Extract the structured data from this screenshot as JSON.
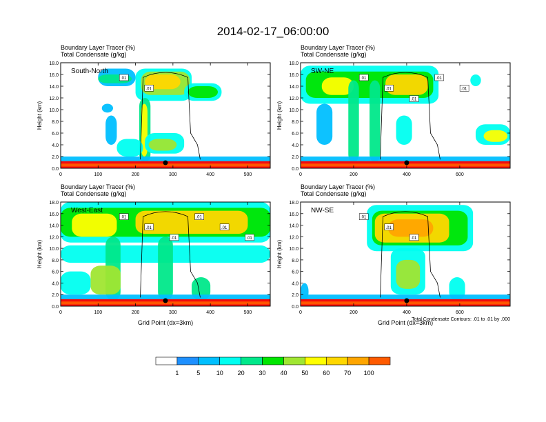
{
  "title": "2014-02-17_06:00:00",
  "colors": {
    "levels": [
      "#ffffff",
      "#1e90ff",
      "#00bfff",
      "#00fff0",
      "#00e88a",
      "#00e600",
      "#a0e632",
      "#ffff00",
      "#ffd700",
      "#ffa500",
      "#ff5a00",
      "#ff0000"
    ],
    "contour": "#000000",
    "marker": "#000000"
  },
  "colorbar": {
    "labels": [
      "1",
      "5",
      "10",
      "20",
      "30",
      "40",
      "50",
      "60",
      "70",
      "100"
    ]
  },
  "footnote": "Total Condensate Contours: .01 to .01 by .000",
  "chart_data": [
    {
      "type": "heatmap",
      "panel_label": "South-North",
      "title_line1": "Boundary Layer Tracer    (%)",
      "title_line2": "Total Condensate   (g/kg)",
      "xlabel": "",
      "ylabel": "Height (km)",
      "xlim": [
        0,
        560
      ],
      "ylim": [
        0,
        18
      ],
      "xticks": [
        "0",
        "100",
        "200",
        "300",
        "400",
        "500"
      ],
      "yticks": [
        "0.0",
        "2.0",
        "4.0",
        "6.0",
        "8.0",
        "10.0",
        "12.0",
        "14.0",
        "16.0",
        "18.0"
      ],
      "marker_x": 280,
      "contour_labels": [
        ".01",
        ".01"
      ],
      "tracer_blobs": [
        {
          "x": [
            200,
            350
          ],
          "y": [
            11.5,
            17
          ],
          "level": 3
        },
        {
          "x": [
            215,
            345
          ],
          "y": [
            12.5,
            16.5
          ],
          "level": 6
        },
        {
          "x": [
            225,
            320
          ],
          "y": [
            13.5,
            16
          ],
          "level": 8
        },
        {
          "x": [
            100,
            200
          ],
          "y": [
            14,
            17
          ],
          "level": 2
        },
        {
          "x": [
            100,
            190
          ],
          "y": [
            14.5,
            16
          ],
          "level": 4
        },
        {
          "x": [
            330,
            430
          ],
          "y": [
            11.5,
            14.5
          ],
          "level": 3
        },
        {
          "x": [
            340,
            420
          ],
          "y": [
            12,
            14
          ],
          "level": 5
        },
        {
          "x": [
            210,
            240
          ],
          "y": [
            1,
            12
          ],
          "level": 4
        },
        {
          "x": [
            215,
            232
          ],
          "y": [
            2,
            11
          ],
          "level": 7
        },
        {
          "x": [
            225,
            330
          ],
          "y": [
            2.5,
            6
          ],
          "level": 3
        },
        {
          "x": [
            235,
            310
          ],
          "y": [
            3,
            5
          ],
          "level": 6
        },
        {
          "x": [
            150,
            220
          ],
          "y": [
            2,
            5
          ],
          "level": 3
        },
        {
          "x": [
            120,
            150
          ],
          "y": [
            4,
            9
          ],
          "level": 2
        },
        {
          "x": [
            110,
            140
          ],
          "y": [
            9.5,
            11
          ],
          "level": 2
        },
        {
          "x": [
            0,
            560
          ],
          "y": [
            0.8,
            2
          ],
          "level": 2
        },
        {
          "x": [
            0,
            560
          ],
          "y": [
            0,
            1.2
          ],
          "level": 11
        },
        {
          "x": [
            0,
            560
          ],
          "y": [
            0.3,
            0.8
          ],
          "level": 10
        }
      ]
    },
    {
      "type": "heatmap",
      "panel_label": "SW-NE",
      "title_line1": "Boundary Layer Tracer    (%)",
      "title_line2": "Total Condensate   (g/kg)",
      "xlabel": "",
      "ylabel": "Height (km)",
      "xlim": [
        0,
        790
      ],
      "ylim": [
        0,
        18
      ],
      "xticks": [
        "0",
        "200",
        "400",
        "600"
      ],
      "yticks": [
        "0.0",
        "2.0",
        "4.0",
        "6.0",
        "8.0",
        "10.0",
        "12.0",
        "14.0",
        "16.0",
        "18.0"
      ],
      "marker_x": 400,
      "contour_labels": [
        ".01",
        ".01",
        ".01",
        ".01",
        ".01"
      ],
      "tracer_blobs": [
        {
          "x": [
            0,
            520
          ],
          "y": [
            11,
            17.5
          ],
          "level": 3
        },
        {
          "x": [
            20,
            500
          ],
          "y": [
            12,
            16.5
          ],
          "level": 5
        },
        {
          "x": [
            320,
            480
          ],
          "y": [
            12.5,
            16
          ],
          "level": 8
        },
        {
          "x": [
            80,
            200
          ],
          "y": [
            12.5,
            15.5
          ],
          "level": 7
        },
        {
          "x": [
            180,
            220
          ],
          "y": [
            1,
            15
          ],
          "level": 4
        },
        {
          "x": [
            260,
            300
          ],
          "y": [
            1,
            15
          ],
          "level": 4
        },
        {
          "x": [
            360,
            420
          ],
          "y": [
            4,
            9
          ],
          "level": 3
        },
        {
          "x": [
            60,
            120
          ],
          "y": [
            4,
            11
          ],
          "level": 2
        },
        {
          "x": [
            660,
            790
          ],
          "y": [
            4,
            7.5
          ],
          "level": 3
        },
        {
          "x": [
            690,
            780
          ],
          "y": [
            4.5,
            6.5
          ],
          "level": 7
        },
        {
          "x": [
            640,
            680
          ],
          "y": [
            14,
            16
          ],
          "level": 3
        },
        {
          "x": [
            0,
            790
          ],
          "y": [
            0.8,
            2
          ],
          "level": 2
        },
        {
          "x": [
            0,
            790
          ],
          "y": [
            0,
            1.2
          ],
          "level": 11
        },
        {
          "x": [
            0,
            790
          ],
          "y": [
            0.3,
            0.8
          ],
          "level": 10
        }
      ]
    },
    {
      "type": "heatmap",
      "panel_label": "West-East",
      "title_line1": "Boundary Layer Tracer    (%)",
      "title_line2": "Total Condensate   (g/kg)",
      "xlabel": "Grid Point (dx=3km)",
      "ylabel": "Height (km)",
      "xlim": [
        0,
        560
      ],
      "ylim": [
        0,
        18
      ],
      "xticks": [
        "0",
        "100",
        "200",
        "300",
        "400",
        "500"
      ],
      "yticks": [
        "0.0",
        "2.0",
        "4.0",
        "6.0",
        "8.0",
        "10.0",
        "12.0",
        "14.0",
        "16.0",
        "18.0"
      ],
      "marker_x": 280,
      "contour_labels": [
        ".01",
        ".01",
        ".01",
        ".01",
        ".01",
        ".01"
      ],
      "tracer_blobs": [
        {
          "x": [
            0,
            560
          ],
          "y": [
            11,
            18
          ],
          "level": 3
        },
        {
          "x": [
            0,
            560
          ],
          "y": [
            12,
            17
          ],
          "level": 5
        },
        {
          "x": [
            200,
            500
          ],
          "y": [
            12.5,
            16.5
          ],
          "level": 8
        },
        {
          "x": [
            30,
            150
          ],
          "y": [
            12,
            16
          ],
          "level": 7
        },
        {
          "x": [
            0,
            560
          ],
          "y": [
            7.5,
            10.5
          ],
          "level": 3
        },
        {
          "x": [
            120,
            160
          ],
          "y": [
            1,
            12
          ],
          "level": 4
        },
        {
          "x": [
            260,
            300
          ],
          "y": [
            1,
            12
          ],
          "level": 4
        },
        {
          "x": [
            0,
            80
          ],
          "y": [
            2,
            6
          ],
          "level": 3
        },
        {
          "x": [
            80,
            160
          ],
          "y": [
            2,
            7
          ],
          "level": 6
        },
        {
          "x": [
            350,
            400
          ],
          "y": [
            1,
            5
          ],
          "level": 4
        },
        {
          "x": [
            0,
            560
          ],
          "y": [
            0.8,
            2
          ],
          "level": 2
        },
        {
          "x": [
            0,
            560
          ],
          "y": [
            0,
            1.2
          ],
          "level": 11
        },
        {
          "x": [
            0,
            560
          ],
          "y": [
            0.3,
            0.8
          ],
          "level": 10
        }
      ]
    },
    {
      "type": "heatmap",
      "panel_label": "NW-SE",
      "title_line1": "Boundary Layer Tracer    (%)",
      "title_line2": "Total Condensate   (g/kg)",
      "xlabel": "Grid Point (dx=3km)",
      "ylabel": "Height (km)",
      "xlim": [
        0,
        790
      ],
      "ylim": [
        0,
        18
      ],
      "xticks": [
        "0",
        "200",
        "400",
        "600"
      ],
      "yticks": [
        "0.0",
        "2.0",
        "4.0",
        "6.0",
        "8.0",
        "10.0",
        "12.0",
        "14.0",
        "16.0",
        "18.0"
      ],
      "marker_x": 400,
      "contour_labels": [
        ".01",
        ".01",
        ".01"
      ],
      "tracer_blobs": [
        {
          "x": [
            250,
            650
          ],
          "y": [
            9.5,
            17.5
          ],
          "level": 3
        },
        {
          "x": [
            270,
            630
          ],
          "y": [
            10.5,
            16.5
          ],
          "level": 5
        },
        {
          "x": [
            280,
            560
          ],
          "y": [
            11,
            16
          ],
          "level": 8
        },
        {
          "x": [
            330,
            500
          ],
          "y": [
            12,
            15
          ],
          "level": 9
        },
        {
          "x": [
            340,
            470
          ],
          "y": [
            2,
            10
          ],
          "level": 3
        },
        {
          "x": [
            360,
            450
          ],
          "y": [
            3,
            8
          ],
          "level": 6
        },
        {
          "x": [
            560,
            620
          ],
          "y": [
            1,
            5
          ],
          "level": 3
        },
        {
          "x": [
            0,
            30
          ],
          "y": [
            1,
            4
          ],
          "level": 2
        },
        {
          "x": [
            0,
            790
          ],
          "y": [
            0.8,
            2
          ],
          "level": 2
        },
        {
          "x": [
            0,
            790
          ],
          "y": [
            0,
            1.2
          ],
          "level": 11
        },
        {
          "x": [
            0,
            790
          ],
          "y": [
            0.3,
            0.8
          ],
          "level": 10
        }
      ]
    }
  ]
}
